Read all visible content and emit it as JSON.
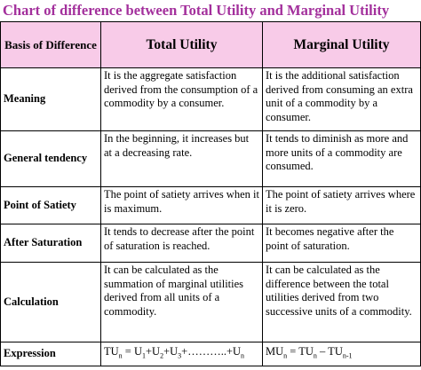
{
  "title": "Chart of difference between Total Utility and Marginal Utility",
  "table": {
    "header": [
      "Basis of Difference",
      "Total Utility",
      "Marginal Utility"
    ],
    "rows": [
      [
        "Meaning",
        "It is the aggregate satisfaction derived from the consumption of a commodity by a consumer.",
        "It is the additional satisfaction derived from consuming an extra unit of a commodity by a consumer."
      ],
      [
        "General tendency",
        "In the beginning, it increases but at a decreasing rate.",
        "It tends to diminish as more and more units of a commodity are consumed."
      ],
      [
        "Point of Satiety",
        "The point of satiety arrives when it is maximum.",
        "The point of satiety arrives where it is zero."
      ],
      [
        "After Saturation",
        "It tends to decrease after the point of saturation is reached.",
        "It becomes negative after the point of saturation."
      ],
      [
        "Calculation",
        "It can be calculated as the summation of marginal utilities derived from all units of a commodity.",
        "It can be calculated as the difference between the total utilities derived from two successive units of a commodity."
      ],
      [
        "Expression",
        [
          {
            "text": "TU",
            "sub": false
          },
          {
            "text": "n",
            "sub": true
          },
          {
            "text": " = U",
            "sub": false
          },
          {
            "text": "1",
            "sub": true
          },
          {
            "text": "+U",
            "sub": false
          },
          {
            "text": "2",
            "sub": true
          },
          {
            "text": "+U",
            "sub": false
          },
          {
            "text": "3",
            "sub": true
          },
          {
            "text": "+………..+U",
            "sub": false
          },
          {
            "text": "n",
            "sub": true
          }
        ],
        [
          {
            "text": "MU",
            "sub": false
          },
          {
            "text": "n",
            "sub": true
          },
          {
            "text": " = TU",
            "sub": false
          },
          {
            "text": "n",
            "sub": true
          },
          {
            "text": " – TU",
            "sub": false
          },
          {
            "text": "n-1",
            "sub": true
          }
        ]
      ]
    ]
  }
}
